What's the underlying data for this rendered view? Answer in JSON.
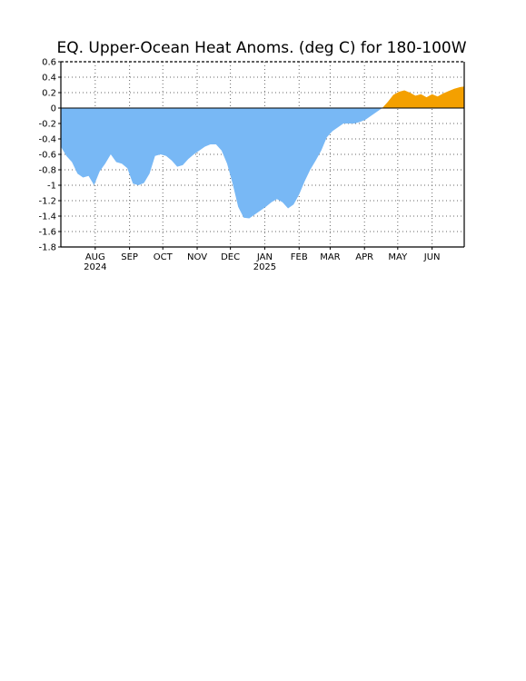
{
  "chart_data": {
    "type": "area",
    "title": "EQ. Upper-Ocean Heat Anoms. (deg C) for 180-100W",
    "ylim": [
      -1.8,
      0.6
    ],
    "yticks": [
      0.6,
      0.4,
      0.2,
      0,
      -0.2,
      -0.4,
      -0.6,
      -0.8,
      -1,
      -1.2,
      -1.4,
      -1.6,
      -1.8
    ],
    "ytick_labels": [
      "0.6",
      "0.4",
      "0.2",
      "0",
      "-0.2",
      "-0.4",
      "-0.6",
      "-0.8",
      "-1",
      "-1.2",
      "-1.4",
      "-1.6",
      "-1.8"
    ],
    "xlim": [
      "2024-07-01",
      "2025-06-30"
    ],
    "month_ticks": [
      {
        "date": "2024-08-01",
        "label": "AUG",
        "year": "2024"
      },
      {
        "date": "2024-09-01",
        "label": "SEP",
        "year": ""
      },
      {
        "date": "2024-10-01",
        "label": "OCT",
        "year": ""
      },
      {
        "date": "2024-11-01",
        "label": "NOV",
        "year": ""
      },
      {
        "date": "2024-12-01",
        "label": "DEC",
        "year": ""
      },
      {
        "date": "2025-01-01",
        "label": "JAN",
        "year": "2025"
      },
      {
        "date": "2025-02-01",
        "label": "FEB",
        "year": ""
      },
      {
        "date": "2025-03-01",
        "label": "MAR",
        "year": ""
      },
      {
        "date": "2025-04-01",
        "label": "APR",
        "year": ""
      },
      {
        "date": "2025-05-01",
        "label": "MAY",
        "year": ""
      },
      {
        "date": "2025-06-01",
        "label": "JUN",
        "year": ""
      }
    ],
    "grid": true,
    "colors": {
      "positive": "#f4a000",
      "negative": "#78b8f5"
    },
    "x": [
      "2024-07-01",
      "2024-07-06",
      "2024-07-11",
      "2024-07-16",
      "2024-07-21",
      "2024-07-26",
      "2024-07-31",
      "2024-08-05",
      "2024-08-10",
      "2024-08-15",
      "2024-08-20",
      "2024-08-25",
      "2024-08-30",
      "2024-09-04",
      "2024-09-09",
      "2024-09-14",
      "2024-09-19",
      "2024-09-24",
      "2024-09-29",
      "2024-10-04",
      "2024-10-09",
      "2024-10-14",
      "2024-10-19",
      "2024-10-24",
      "2024-10-29",
      "2024-11-03",
      "2024-11-08",
      "2024-11-13",
      "2024-11-18",
      "2024-11-23",
      "2024-11-28",
      "2024-12-03",
      "2024-12-08",
      "2024-12-13",
      "2024-12-18",
      "2024-12-23",
      "2024-12-28",
      "2025-01-02",
      "2025-01-07",
      "2025-01-12",
      "2025-01-17",
      "2025-01-22",
      "2025-01-27",
      "2025-02-01",
      "2025-02-06",
      "2025-02-11",
      "2025-02-16",
      "2025-02-21",
      "2025-02-26",
      "2025-03-03",
      "2025-03-08",
      "2025-03-13",
      "2025-03-18",
      "2025-03-23",
      "2025-03-28",
      "2025-04-02",
      "2025-04-07",
      "2025-04-12",
      "2025-04-17",
      "2025-04-22",
      "2025-04-27",
      "2025-05-02",
      "2025-05-07",
      "2025-05-12",
      "2025-05-17",
      "2025-05-22",
      "2025-05-27",
      "2025-06-01",
      "2025-06-06",
      "2025-06-11",
      "2025-06-16",
      "2025-06-21",
      "2025-06-26",
      "2025-06-30"
    ],
    "values": [
      -0.5,
      -0.62,
      -0.7,
      -0.85,
      -0.9,
      -0.88,
      -1.0,
      -0.82,
      -0.72,
      -0.6,
      -0.7,
      -0.72,
      -0.78,
      -0.98,
      -1.0,
      -0.97,
      -0.85,
      -0.62,
      -0.6,
      -0.62,
      -0.68,
      -0.76,
      -0.74,
      -0.66,
      -0.6,
      -0.55,
      -0.5,
      -0.47,
      -0.47,
      -0.55,
      -0.72,
      -0.98,
      -1.28,
      -1.42,
      -1.43,
      -1.38,
      -1.33,
      -1.28,
      -1.22,
      -1.18,
      -1.22,
      -1.3,
      -1.25,
      -1.12,
      -0.95,
      -0.8,
      -0.68,
      -0.55,
      -0.38,
      -0.3,
      -0.25,
      -0.2,
      -0.2,
      -0.2,
      -0.18,
      -0.15,
      -0.1,
      -0.05,
      0.0,
      0.08,
      0.17,
      0.21,
      0.23,
      0.2,
      0.16,
      0.18,
      0.14,
      0.18,
      0.15,
      0.19,
      0.22,
      0.25,
      0.27,
      0.28
    ]
  }
}
